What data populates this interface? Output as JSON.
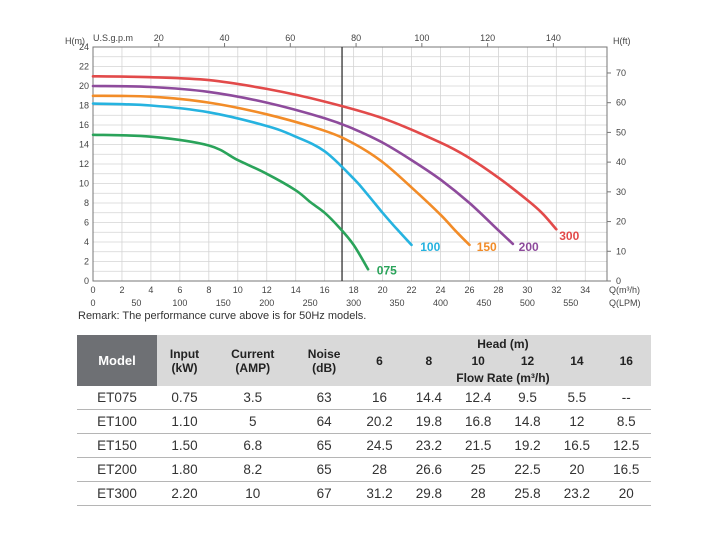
{
  "chart_data": {
    "type": "line",
    "x_unit_bottom": "Q(m³/h)",
    "x_ticks_bottom": [
      "0",
      "2",
      "4",
      "6",
      "8",
      "10",
      "12",
      "14",
      "16",
      "18",
      "20",
      "22",
      "24",
      "26",
      "28",
      "30",
      "32",
      "34"
    ],
    "x_unit_lpm": "Q(LPM)",
    "x_ticks_lpm": [
      "0",
      "50",
      "100",
      "150",
      "200",
      "250",
      "300",
      "350",
      "400",
      "450",
      "500",
      "550"
    ],
    "x_unit_top": "U.S.g.p.m",
    "x_ticks_top": [
      "20",
      "40",
      "60",
      "80",
      "100",
      "120",
      "140"
    ],
    "y_label_left": "H(m)",
    "y_ticks_left": [
      "0",
      "2",
      "4",
      "6",
      "8",
      "10",
      "12",
      "14",
      "16",
      "18",
      "20",
      "22",
      "24"
    ],
    "y_label_right": "H(ft)",
    "y_ticks_right": [
      "0",
      "10",
      "20",
      "30",
      "40",
      "50",
      "60",
      "70"
    ],
    "xlim": [
      0,
      35.5
    ],
    "ylim": [
      0,
      24
    ],
    "vline_x": 17.2,
    "grid": true,
    "series": [
      {
        "name": "075",
        "color": "#2aa35a",
        "points": [
          [
            0,
            15
          ],
          [
            4,
            14.8
          ],
          [
            8,
            13.9
          ],
          [
            10,
            12.4
          ],
          [
            12,
            11
          ],
          [
            14,
            9.3
          ],
          [
            15,
            8.1
          ],
          [
            16,
            7
          ],
          [
            17,
            5.5
          ],
          [
            18,
            3.7
          ],
          [
            19,
            1.2
          ]
        ],
        "label_at": [
          19.6,
          1.1
        ]
      },
      {
        "name": "100",
        "color": "#26b3e0",
        "points": [
          [
            0,
            18.2
          ],
          [
            4,
            18
          ],
          [
            8,
            17.3
          ],
          [
            12,
            15.9
          ],
          [
            14,
            14.8
          ],
          [
            16,
            13.3
          ],
          [
            18,
            10.5
          ],
          [
            19,
            8.8
          ],
          [
            20,
            7
          ],
          [
            21,
            5.3
          ],
          [
            22,
            3.7
          ]
        ],
        "label_at": [
          22.6,
          3.5
        ]
      },
      {
        "name": "150",
        "color": "#f28c28",
        "points": [
          [
            0,
            19
          ],
          [
            4,
            18.9
          ],
          [
            8,
            18.3
          ],
          [
            12,
            17.1
          ],
          [
            16,
            15.4
          ],
          [
            18,
            14.1
          ],
          [
            20,
            12.2
          ],
          [
            22,
            9.6
          ],
          [
            24,
            6.8
          ],
          [
            25,
            5.2
          ],
          [
            26,
            3.7
          ]
        ],
        "label_at": [
          26.5,
          3.5
        ]
      },
      {
        "name": "200",
        "color": "#8e4b9c",
        "points": [
          [
            0,
            20
          ],
          [
            4,
            19.9
          ],
          [
            8,
            19.4
          ],
          [
            12,
            18.3
          ],
          [
            16,
            16.7
          ],
          [
            18,
            15.6
          ],
          [
            20,
            14.2
          ],
          [
            22,
            12.4
          ],
          [
            24,
            10.4
          ],
          [
            26,
            8
          ],
          [
            28,
            5.2
          ],
          [
            29,
            3.8
          ]
        ],
        "label_at": [
          29.4,
          3.5
        ]
      },
      {
        "name": "300",
        "color": "#e24a4a",
        "points": [
          [
            0,
            21
          ],
          [
            4,
            20.9
          ],
          [
            8,
            20.6
          ],
          [
            12,
            19.7
          ],
          [
            16,
            18.4
          ],
          [
            20,
            16.7
          ],
          [
            24,
            14.2
          ],
          [
            26,
            12.6
          ],
          [
            28,
            10.6
          ],
          [
            30,
            8.3
          ],
          [
            31,
            7
          ],
          [
            32,
            5.3
          ]
        ],
        "label_at": [
          32.2,
          4.6
        ]
      }
    ]
  },
  "remark": "Remark: The performance curve above is for 50Hz models.",
  "table": {
    "model_header": "Model",
    "input_header": "Input",
    "input_unit": "(kW)",
    "current_header": "Current",
    "current_unit": "(AMP)",
    "noise_header": "Noise",
    "noise_unit": "(dB)",
    "head_header": "Head (m)",
    "head_values": [
      "6",
      "8",
      "10",
      "12",
      "14",
      "16"
    ],
    "flow_header": "Flow Rate (m³/h)",
    "rows": [
      {
        "model": "ET075",
        "input": "0.75",
        "current": "3.5",
        "noise": "63",
        "flows": [
          "16",
          "14.4",
          "12.4",
          "9.5",
          "5.5",
          "--"
        ]
      },
      {
        "model": "ET100",
        "input": "1.10",
        "current": "5",
        "noise": "64",
        "flows": [
          "20.2",
          "19.8",
          "16.8",
          "14.8",
          "12",
          "8.5"
        ]
      },
      {
        "model": "ET150",
        "input": "1.50",
        "current": "6.8",
        "noise": "65",
        "flows": [
          "24.5",
          "23.2",
          "21.5",
          "19.2",
          "16.5",
          "12.5"
        ]
      },
      {
        "model": "ET200",
        "input": "1.80",
        "current": "8.2",
        "noise": "65",
        "flows": [
          "28",
          "26.6",
          "25",
          "22.5",
          "20",
          "16.5"
        ]
      },
      {
        "model": "ET300",
        "input": "2.20",
        "current": "10",
        "noise": "67",
        "flows": [
          "31.2",
          "29.8",
          "28",
          "25.8",
          "23.2",
          "20"
        ]
      }
    ]
  }
}
